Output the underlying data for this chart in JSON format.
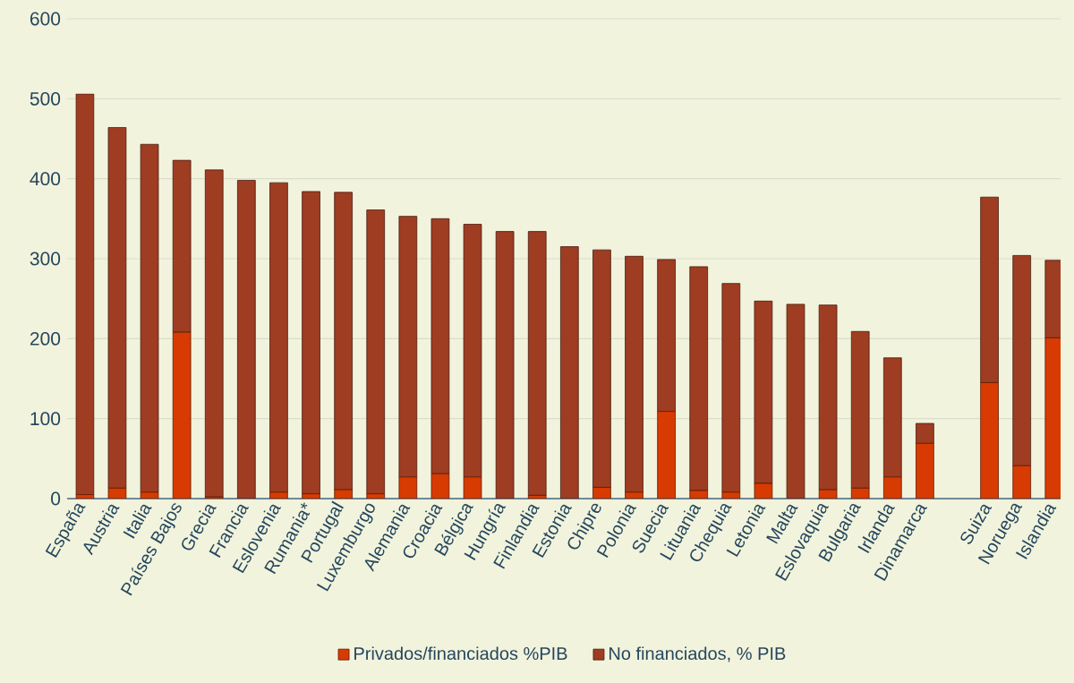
{
  "chart_data": {
    "type": "bar",
    "stacked": true,
    "categories": [
      "España",
      "Austria",
      "Italia",
      "Países Bajos",
      "Grecia",
      "Francia",
      "Eslovenia",
      "Rumania*",
      "Portugal",
      "Luxemburgo",
      "Alemania",
      "Croacia",
      "Bélgica",
      "Hungría",
      "Finlandia",
      "Estonia",
      "Chipre",
      "Polonia",
      "Suecia",
      "Lituania",
      "Chequia",
      "Letonia",
      "Malta",
      "Eslovaquia",
      "Bulgaria",
      "Irlanda",
      "Dinamarca",
      null,
      "Suiza",
      "Noruega",
      "Islandia"
    ],
    "series": [
      {
        "name": "Privados/financiados %PIB",
        "color": "#d83b01",
        "values": [
          5,
          13,
          8,
          208,
          2,
          0,
          8,
          6,
          11,
          6,
          27,
          31,
          27,
          0,
          4,
          0,
          14,
          8,
          109,
          10,
          8,
          19,
          0,
          11,
          13,
          27,
          69,
          null,
          145,
          41,
          201
        ]
      },
      {
        "name": "No financiados, % PIB",
        "color": "#9e3d22",
        "values": [
          501,
          451,
          435,
          215,
          409,
          398,
          387,
          378,
          372,
          355,
          326,
          319,
          316,
          334,
          330,
          315,
          297,
          295,
          190,
          280,
          261,
          228,
          243,
          231,
          196,
          149,
          25,
          null,
          232,
          263,
          97
        ]
      }
    ],
    "ylim": [
      0,
      600
    ],
    "yticks": [
      0,
      100,
      200,
      300,
      400,
      500,
      600
    ],
    "grid": "y",
    "legend": "bottom"
  }
}
